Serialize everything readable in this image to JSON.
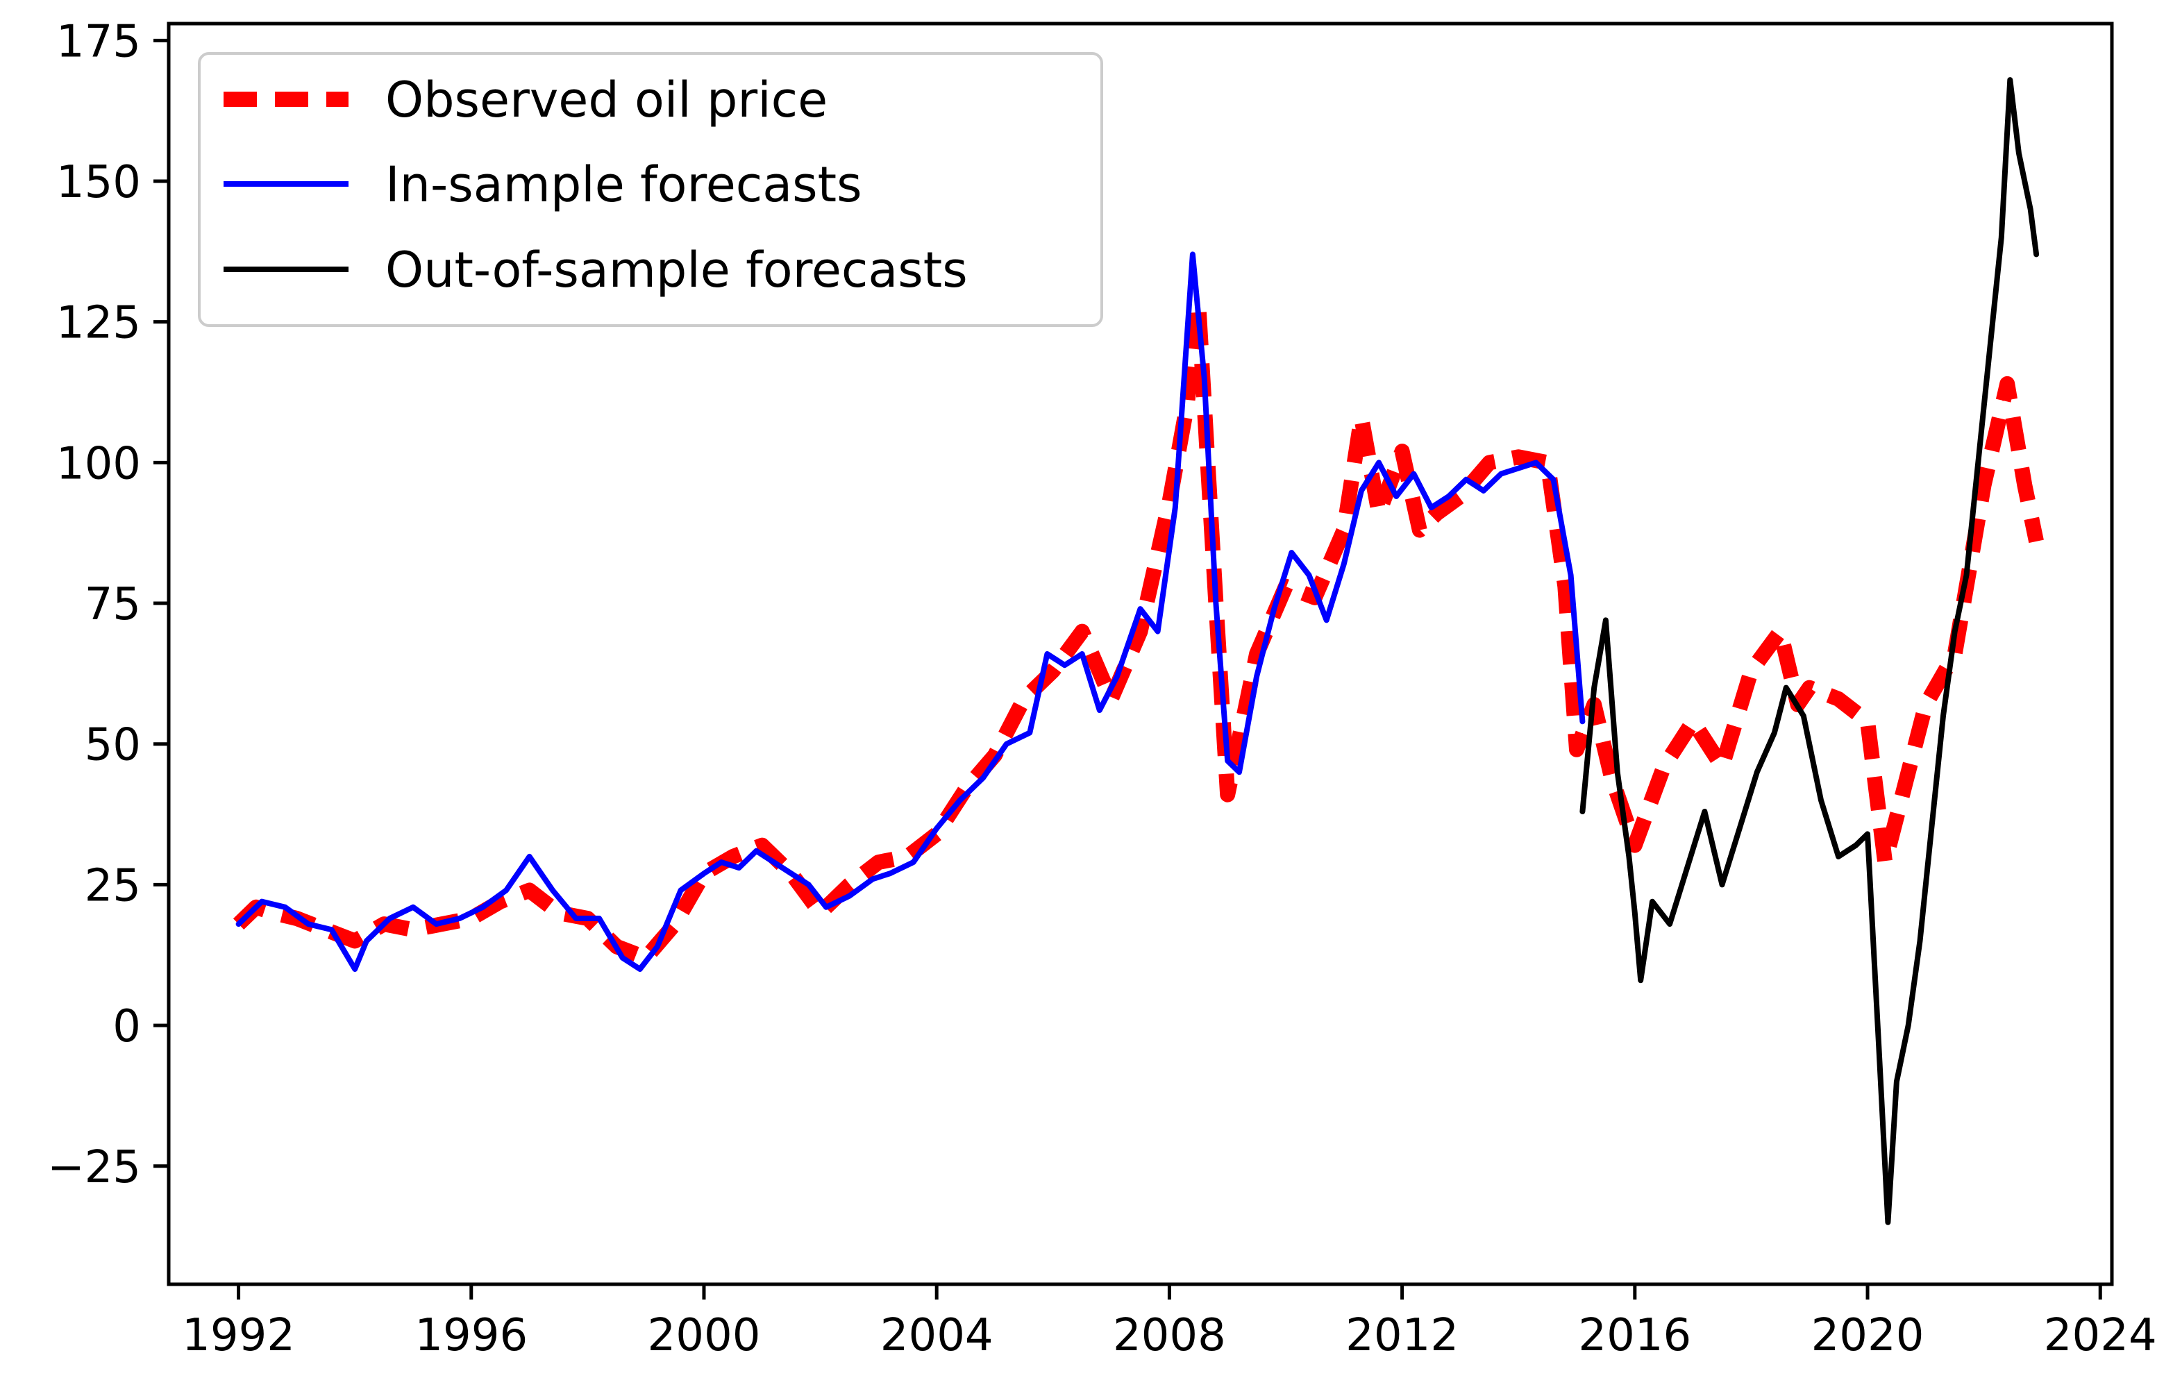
{
  "chart_data": {
    "type": "line",
    "title": "",
    "xlabel": "",
    "ylabel": "",
    "xlim": [
      1990.8,
      2024.2
    ],
    "ylim": [
      -46,
      178
    ],
    "xticks": [
      1992,
      1996,
      2000,
      2004,
      2008,
      2012,
      2016,
      2020,
      2024
    ],
    "xtick_labels": [
      "1992",
      "1996",
      "2000",
      "2004",
      "2008",
      "2012",
      "2016",
      "2020",
      "2024"
    ],
    "yticks": [
      -25,
      0,
      25,
      50,
      75,
      100,
      125,
      150,
      175
    ],
    "ytick_labels": [
      "−25",
      "0",
      "25",
      "50",
      "75",
      "100",
      "125",
      "150",
      "175"
    ],
    "grid": false,
    "legend_position": "top-left",
    "series": [
      {
        "name": "Observed oil price",
        "legend_label": "Observed oil price",
        "color": "#ff0000",
        "style": "dashed",
        "x": [
          1992.0,
          1992.3,
          1992.6,
          1993.0,
          1993.5,
          1994.0,
          1994.5,
          1995.0,
          1995.5,
          1996.0,
          1996.5,
          1997.0,
          1997.5,
          1998.0,
          1998.5,
          1999.0,
          1999.5,
          2000.0,
          2000.5,
          2001.0,
          2001.5,
          2002.0,
          2002.5,
          2003.0,
          2003.5,
          2004.0,
          2004.5,
          2005.0,
          2005.5,
          2006.0,
          2006.5,
          2007.0,
          2007.5,
          2008.0,
          2008.3,
          2008.5,
          2008.8,
          2009.0,
          2009.5,
          2010.0,
          2010.5,
          2011.0,
          2011.3,
          2011.6,
          2012.0,
          2012.3,
          2012.6,
          2013.0,
          2013.5,
          2014.0,
          2014.5,
          2014.8,
          2015.0,
          2015.3,
          2015.6,
          2016.0,
          2016.5,
          2017.0,
          2017.5,
          2018.0,
          2018.5,
          2018.8,
          2019.0,
          2019.5,
          2020.0,
          2020.3,
          2020.6,
          2021.0,
          2021.5,
          2022.0,
          2022.4,
          2022.7,
          2022.9
        ],
        "values": [
          18,
          21,
          20,
          19,
          17,
          15,
          18,
          17,
          18,
          19,
          22,
          24,
          20,
          19,
          14,
          12,
          18,
          27,
          30,
          32,
          27,
          20,
          25,
          29,
          30,
          34,
          42,
          48,
          58,
          63,
          70,
          58,
          70,
          93,
          110,
          128,
          75,
          41,
          66,
          78,
          76,
          88,
          108,
          91,
          102,
          88,
          91,
          94,
          100,
          101,
          100,
          78,
          49,
          57,
          44,
          32,
          46,
          54,
          46,
          63,
          70,
          57,
          60,
          58,
          54,
          29,
          41,
          57,
          66,
          96,
          114,
          96,
          86
        ]
      },
      {
        "name": "In-sample forecasts",
        "legend_label": "In-sample forecasts",
        "color": "#0000ff",
        "style": "solid",
        "x": [
          1992.0,
          1992.4,
          1992.8,
          1993.2,
          1993.6,
          1994.0,
          1994.2,
          1994.6,
          1995.0,
          1995.4,
          1995.8,
          1996.2,
          1996.6,
          1997.0,
          1997.4,
          1997.8,
          1998.2,
          1998.6,
          1998.9,
          1999.2,
          1999.6,
          2000.0,
          2000.3,
          2000.6,
          2000.9,
          2001.2,
          2001.5,
          2001.8,
          2002.1,
          2002.5,
          2002.9,
          2003.2,
          2003.6,
          2004.0,
          2004.4,
          2004.8,
          2005.2,
          2005.6,
          2005.9,
          2006.2,
          2006.5,
          2006.8,
          2007.1,
          2007.5,
          2007.8,
          2008.1,
          2008.4,
          2008.6,
          2008.8,
          2009.0,
          2009.2,
          2009.5,
          2009.8,
          2010.1,
          2010.4,
          2010.7,
          2011.0,
          2011.3,
          2011.6,
          2011.9,
          2012.2,
          2012.5,
          2012.8,
          2013.1,
          2013.4,
          2013.7,
          2014.0,
          2014.3,
          2014.6,
          2014.9,
          2015.1
        ],
        "values": [
          18,
          22,
          21,
          18,
          17,
          10,
          15,
          19,
          21,
          18,
          19,
          21,
          24,
          30,
          24,
          19,
          19,
          12,
          10,
          14,
          24,
          27,
          29,
          28,
          31,
          29,
          27,
          25,
          21,
          23,
          26,
          27,
          29,
          35,
          40,
          44,
          50,
          52,
          66,
          64,
          66,
          56,
          62,
          74,
          70,
          92,
          137,
          115,
          75,
          47,
          45,
          62,
          74,
          84,
          80,
          72,
          82,
          95,
          100,
          94,
          98,
          92,
          94,
          97,
          95,
          98,
          99,
          100,
          97,
          80,
          54
        ]
      },
      {
        "name": "Out-of-sample forecasts",
        "legend_label": "Out-of-sample forecasts",
        "color": "#000000",
        "style": "solid",
        "x": [
          2015.1,
          2015.3,
          2015.5,
          2015.7,
          2015.9,
          2016.0,
          2016.1,
          2016.3,
          2016.6,
          2016.9,
          2017.2,
          2017.5,
          2017.8,
          2018.1,
          2018.4,
          2018.6,
          2018.9,
          2019.2,
          2019.5,
          2019.8,
          2020.0,
          2020.2,
          2020.35,
          2020.5,
          2020.7,
          2020.9,
          2021.1,
          2021.3,
          2021.5,
          2021.7,
          2021.9,
          2022.1,
          2022.3,
          2022.45,
          2022.6,
          2022.8,
          2022.9
        ],
        "values": [
          38,
          60,
          72,
          45,
          30,
          20,
          8,
          22,
          18,
          28,
          38,
          25,
          35,
          45,
          52,
          60,
          55,
          40,
          30,
          32,
          34,
          -5,
          -35,
          -10,
          0,
          15,
          35,
          55,
          70,
          80,
          100,
          120,
          140,
          168,
          155,
          145,
          137
        ]
      }
    ]
  }
}
